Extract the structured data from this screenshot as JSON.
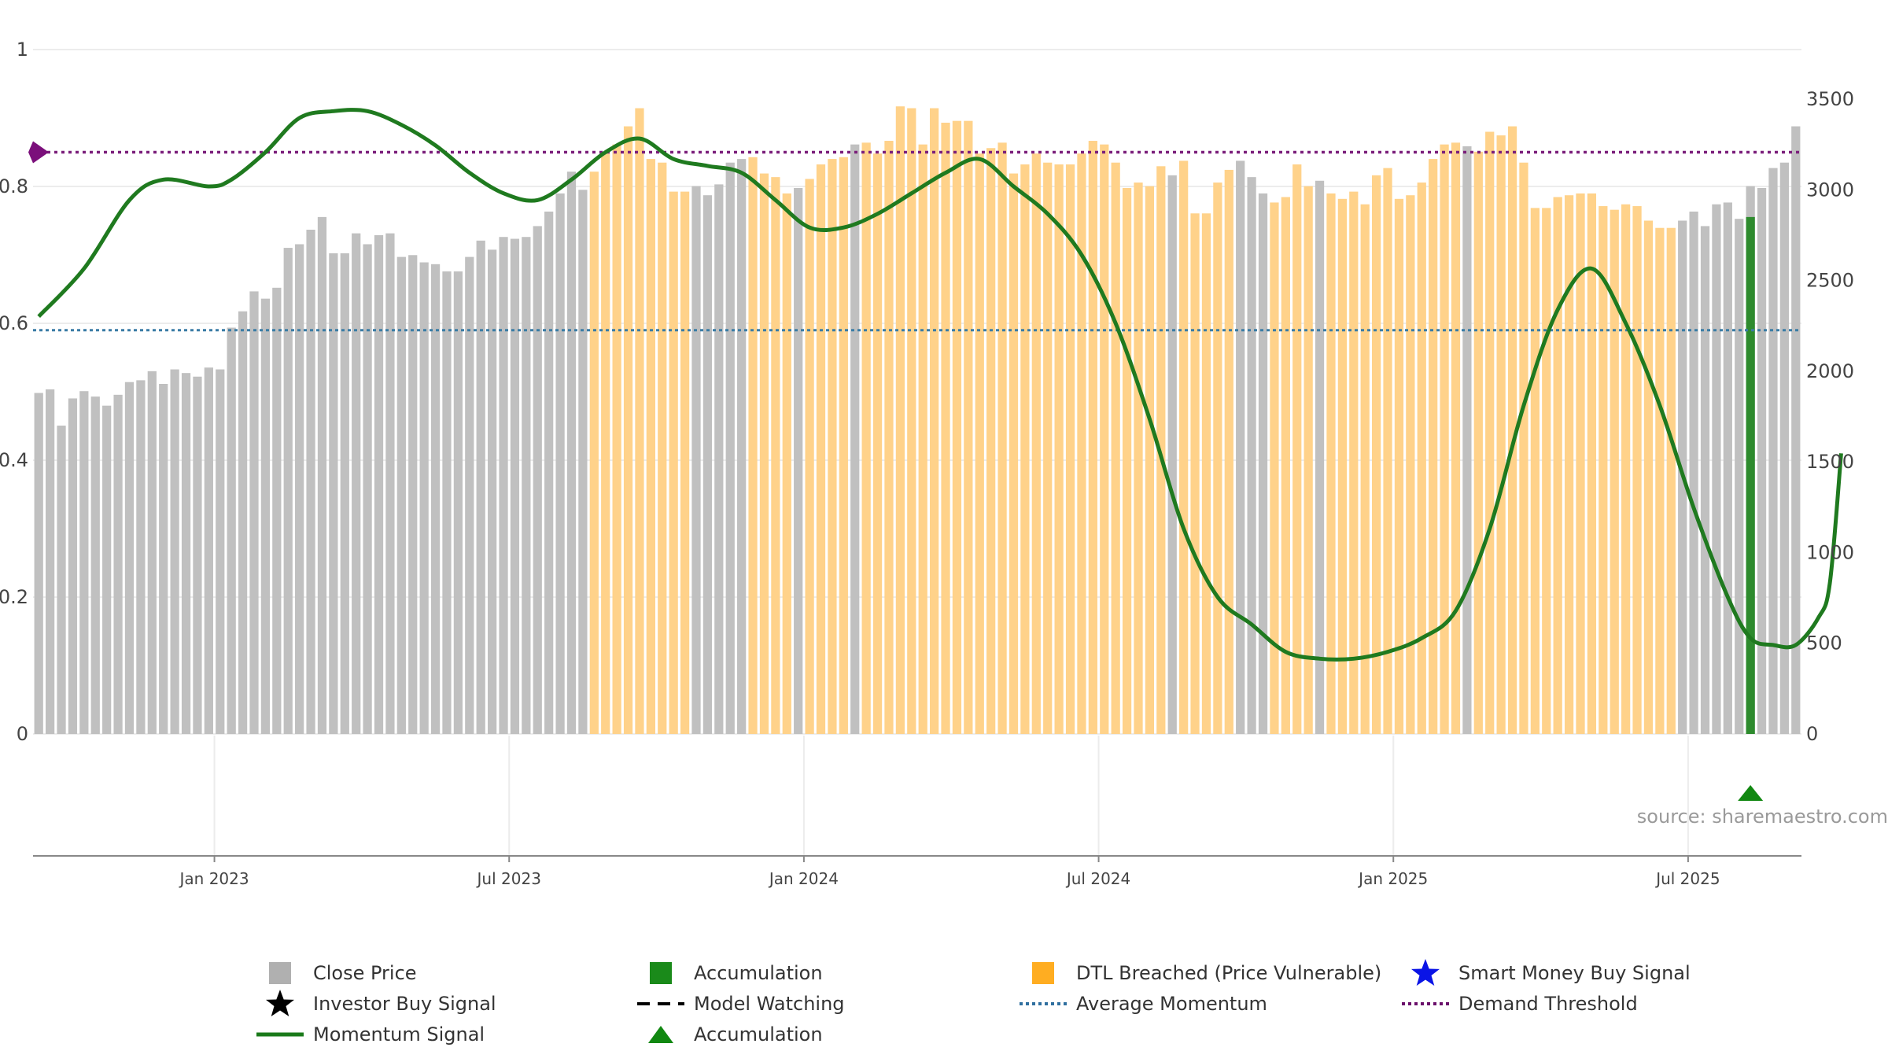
{
  "chart_data": {
    "type": "bar",
    "title": "",
    "xlabel": "",
    "y_left": {
      "ylabel": "",
      "ticks": [
        "0",
        "0.2",
        "0.4",
        "0.6",
        "0.8",
        "1"
      ],
      "range": [
        0,
        1
      ]
    },
    "y_right": {
      "ylabel": "",
      "ticks": [
        "0",
        "500",
        "1000",
        "1500",
        "2000",
        "2500",
        "3000",
        "3500"
      ],
      "range": [
        0,
        3500
      ]
    },
    "x_ticks": [
      "Jan 2023",
      "Jul 2023",
      "Jan 2024",
      "Jul 2024",
      "Jan 2025",
      "Jul 2025"
    ],
    "x_tick_positions": [
      16,
      42,
      68,
      94,
      120,
      146
    ],
    "grid": true,
    "legend_position": "bottom",
    "colors": {
      "close_price": "#c0c0c0",
      "dtl_breached": "#ffd28a",
      "accumulation": "#2e8b2e",
      "momentum": "#1f7a1f",
      "average_momentum": "#3a7ca5",
      "demand_threshold": "#7b1f7b"
    },
    "series": [
      {
        "name": "Close Price",
        "type": "bar",
        "axis": "right",
        "values": [
          1880,
          1900,
          1700,
          1850,
          1890,
          1860,
          1810,
          1870,
          1940,
          1950,
          2000,
          1930,
          2010,
          1990,
          1970,
          2020,
          2010,
          2240,
          2330,
          2440,
          2400,
          2460,
          2680,
          2700,
          2780,
          2850,
          2650,
          2650,
          2760,
          2700,
          2750,
          2760,
          2630,
          2640,
          2600,
          2590,
          2550,
          2550,
          2630,
          2720,
          2670,
          2740,
          2730,
          2740,
          2800,
          2880,
          2980,
          3100,
          3000,
          3100,
          3200,
          3250,
          3350,
          3450,
          3170,
          3150,
          2990,
          2990,
          3020,
          2970,
          3030,
          3150,
          3170,
          3180,
          3090,
          3070,
          2980,
          3010,
          3060,
          3140,
          3170,
          3180,
          3250,
          3260,
          3200,
          3270,
          3460,
          3450,
          3250,
          3450,
          3370,
          3380,
          3380,
          3200,
          3230,
          3260,
          3090,
          3140,
          3200,
          3150,
          3140,
          3140,
          3200,
          3270,
          3250,
          3150,
          3010,
          3040,
          3020,
          3130,
          3080,
          3160,
          2870,
          2870,
          3040,
          3110,
          3160,
          3070,
          2980,
          2930,
          2960,
          3140,
          3020,
          3050,
          2980,
          2950,
          2990,
          2920,
          3080,
          3120,
          2950,
          2970,
          3040,
          3170,
          3250,
          3260,
          3240,
          3210,
          3320,
          3300,
          3350,
          3150,
          2900,
          2900,
          2960,
          2970,
          2980,
          2980,
          2910,
          2890,
          2920,
          2910,
          2830,
          2790,
          2790,
          2830,
          2880,
          2800,
          2920,
          2930,
          2840,
          3020,
          3010,
          3120,
          3150,
          3350
        ],
        "dtl_breached_indices": [
          49,
          50,
          51,
          52,
          53,
          54,
          55,
          56,
          57,
          63,
          64,
          65,
          66,
          68,
          69,
          70,
          71,
          73,
          74,
          75,
          76,
          77,
          78,
          79,
          80,
          81,
          82,
          83,
          84,
          85,
          86,
          87,
          88,
          89,
          90,
          91,
          92,
          93,
          94,
          95,
          96,
          97,
          98,
          99,
          101,
          102,
          103,
          104,
          105,
          109,
          110,
          111,
          112,
          114,
          115,
          116,
          117,
          118,
          119,
          120,
          121,
          122,
          123,
          124,
          125,
          127,
          128,
          129,
          130,
          131,
          132,
          133,
          134,
          135,
          136,
          137,
          138,
          139,
          140,
          141,
          142,
          143,
          144,
          157,
          158,
          159,
          160,
          161,
          162,
          163,
          164
        ]
      },
      {
        "name": "Accumulation",
        "type": "bar",
        "axis": "right",
        "indices": [
          151
        ],
        "values": [
          2850
        ]
      },
      {
        "name": "Momentum Signal",
        "type": "line",
        "axis": "left",
        "points": [
          [
            0,
            0.61
          ],
          [
            4,
            0.68
          ],
          [
            8,
            0.78
          ],
          [
            11,
            0.81
          ],
          [
            15,
            0.8
          ],
          [
            17,
            0.81
          ],
          [
            20,
            0.85
          ],
          [
            23,
            0.9
          ],
          [
            26,
            0.91
          ],
          [
            29,
            0.91
          ],
          [
            32,
            0.89
          ],
          [
            35,
            0.86
          ],
          [
            38,
            0.82
          ],
          [
            41,
            0.79
          ],
          [
            44,
            0.78
          ],
          [
            47,
            0.81
          ],
          [
            50,
            0.85
          ],
          [
            53,
            0.87
          ],
          [
            56,
            0.84
          ],
          [
            59,
            0.83
          ],
          [
            62,
            0.82
          ],
          [
            65,
            0.78
          ],
          [
            68,
            0.74
          ],
          [
            71,
            0.74
          ],
          [
            74,
            0.76
          ],
          [
            77,
            0.79
          ],
          [
            80,
            0.82
          ],
          [
            83,
            0.84
          ],
          [
            86,
            0.8
          ],
          [
            89,
            0.76
          ],
          [
            92,
            0.7
          ],
          [
            95,
            0.6
          ],
          [
            98,
            0.46
          ],
          [
            101,
            0.3
          ],
          [
            104,
            0.2
          ],
          [
            107,
            0.16
          ],
          [
            110,
            0.12
          ],
          [
            113,
            0.11
          ],
          [
            116,
            0.11
          ],
          [
            119,
            0.12
          ],
          [
            122,
            0.14
          ],
          [
            125,
            0.18
          ],
          [
            128,
            0.3
          ],
          [
            131,
            0.48
          ],
          [
            134,
            0.62
          ],
          [
            137,
            0.68
          ],
          [
            140,
            0.6
          ],
          [
            143,
            0.48
          ],
          [
            146,
            0.33
          ],
          [
            149,
            0.2
          ],
          [
            151,
            0.14
          ],
          [
            153,
            0.13
          ],
          [
            155,
            0.13
          ],
          [
            157,
            0.17
          ],
          [
            158,
            0.22
          ],
          [
            159,
            0.41
          ]
        ]
      },
      {
        "name": "Average Momentum",
        "type": "hline",
        "axis": "left",
        "value": 0.59
      },
      {
        "name": "Demand Threshold",
        "type": "hline",
        "axis": "left",
        "value": 0.85
      },
      {
        "name": "Accumulation",
        "type": "marker",
        "marker": "triangle",
        "indices": [
          151
        ]
      }
    ]
  },
  "legend": {
    "items": [
      {
        "label": "Close Price",
        "symbol": "square-grey"
      },
      {
        "label": "Accumulation",
        "symbol": "square-green"
      },
      {
        "label": "DTL Breached (Price Vulnerable)",
        "symbol": "square-orange"
      },
      {
        "label": "Smart Money Buy Signal",
        "symbol": "star-blue"
      },
      {
        "label": "Investor Buy Signal",
        "symbol": "star-black"
      },
      {
        "label": "Model Watching",
        "symbol": "dash-black"
      },
      {
        "label": "Average Momentum",
        "symbol": "dotted-blue"
      },
      {
        "label": "Demand Threshold",
        "symbol": "dotted-purple"
      },
      {
        "label": "Momentum Signal",
        "symbol": "line-green"
      },
      {
        "label": "Accumulation",
        "symbol": "triangle-green"
      }
    ]
  },
  "source": "source: sharemaestro.com"
}
